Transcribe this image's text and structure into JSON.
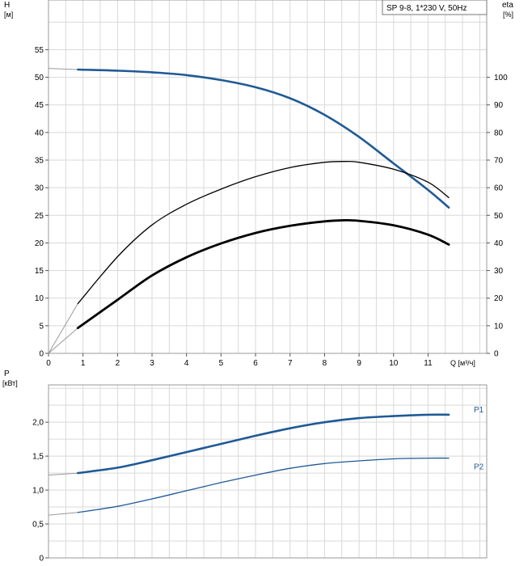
{
  "chart_data": [
    {
      "type": "line",
      "title": "SP 9-8, 1*230 V, 50Hz",
      "xlabel": "Q [м³/ч]",
      "ylabel": "H",
      "ylabel_unit": "[м]",
      "y2label": "eta",
      "y2label_unit": "[%]",
      "xlim": [
        0,
        12.7
      ],
      "ylim": [
        0,
        64
      ],
      "y2lim": [
        0,
        128
      ],
      "x_ticks": [
        "0",
        "1",
        "2",
        "3",
        "4",
        "5",
        "6",
        "7",
        "8",
        "9",
        "10",
        "11"
      ],
      "y_ticks": [
        "0",
        "5",
        "10",
        "15",
        "20",
        "25",
        "30",
        "35",
        "40",
        "45",
        "50",
        "55"
      ],
      "y2_ticks": [
        "0",
        "10",
        "20",
        "30",
        "40",
        "50",
        "60",
        "70",
        "80",
        "90",
        "100"
      ],
      "grid": true,
      "series": [
        {
          "color": "#1f5a96",
          "axis": "left",
          "x": [
            0.85,
            2,
            3,
            4,
            5,
            6,
            7,
            8,
            9,
            10,
            11,
            11.6
          ],
          "y": [
            51.4,
            51.2,
            50.9,
            50.4,
            49.5,
            48.2,
            46.2,
            43.2,
            39.2,
            34.4,
            29.6,
            26.4
          ]
        },
        {
          "color": "#000000",
          "axis": "right",
          "x": [
            0.85,
            2,
            3,
            4,
            5,
            6,
            7,
            8,
            8.6,
            9,
            10,
            11,
            11.6
          ],
          "y": [
            18,
            35,
            46.5,
            54,
            59.5,
            64,
            67.3,
            69.2,
            69.5,
            69.2,
            66.7,
            62,
            56.4
          ]
        },
        {
          "color": "#000000",
          "axis": "left",
          "x": [
            0.85,
            2,
            3,
            4,
            5,
            6,
            7,
            8,
            8.6,
            9,
            10,
            11,
            11.6
          ],
          "y": [
            4.6,
            9.7,
            14.1,
            17.4,
            19.9,
            21.8,
            23.1,
            23.9,
            24.1,
            24.0,
            23.2,
            21.5,
            19.7
          ]
        }
      ]
    },
    {
      "type": "line",
      "xlabel": "",
      "ylabel": "P",
      "ylabel_unit": "[кВт]",
      "xlim": [
        0,
        12.7
      ],
      "ylim": [
        0,
        2.55
      ],
      "y_ticks": [
        "0",
        "0,5",
        "1,0",
        "1,5",
        "2,0"
      ],
      "grid": true,
      "series": [
        {
          "name": "P1",
          "color": "#1f5a96",
          "x": [
            0.85,
            2,
            3,
            4,
            5,
            6,
            7,
            8,
            9,
            10,
            11,
            11.6
          ],
          "y": [
            1.25,
            1.33,
            1.44,
            1.56,
            1.68,
            1.8,
            1.91,
            2.0,
            2.06,
            2.09,
            2.11,
            2.11
          ]
        },
        {
          "name": "P2",
          "color": "#1f5a96",
          "x": [
            0.85,
            2,
            3,
            4,
            5,
            6,
            7,
            8,
            9,
            10,
            11,
            11.6
          ],
          "y": [
            0.67,
            0.76,
            0.87,
            0.99,
            1.11,
            1.22,
            1.32,
            1.39,
            1.43,
            1.46,
            1.47,
            1.47
          ]
        }
      ]
    }
  ]
}
